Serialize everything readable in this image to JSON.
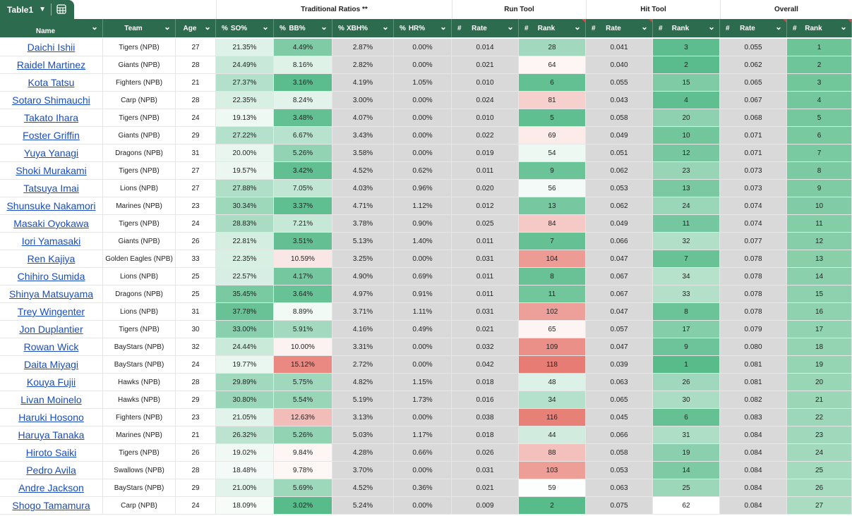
{
  "table_tab": {
    "label": "Table1",
    "chevron_icon": "chevron-down-icon",
    "grid_icon": "table-grid-icon"
  },
  "groups": [
    "Traditional Ratios **",
    "Run Tool",
    "Hit Tool",
    "Overall"
  ],
  "columns": [
    {
      "prefix": "",
      "label": "Name"
    },
    {
      "prefix": "",
      "label": "Team"
    },
    {
      "prefix": "",
      "label": "Age"
    },
    {
      "prefix": "%",
      "label": "SO%"
    },
    {
      "prefix": "%",
      "label": "BB%"
    },
    {
      "prefix": "%",
      "label": "XBH%"
    },
    {
      "prefix": "%",
      "label": "HR%"
    },
    {
      "prefix": "#",
      "label": "Rate"
    },
    {
      "prefix": "#",
      "label": "Rank"
    },
    {
      "prefix": "#",
      "label": "Rate"
    },
    {
      "prefix": "#",
      "label": "Rank"
    },
    {
      "prefix": "#",
      "label": "Rate"
    },
    {
      "prefix": "#",
      "label": "Rank"
    }
  ],
  "rows": [
    [
      "Daichi Ishii",
      "Tigers (NPB)",
      "27",
      "21.35%",
      "4.49%",
      "2.87%",
      "0.00%",
      "0.014",
      "28",
      "0.041",
      "3",
      "0.055",
      "1"
    ],
    [
      "Raidel Martinez",
      "Giants (NPB)",
      "28",
      "24.49%",
      "8.16%",
      "2.82%",
      "0.00%",
      "0.021",
      "64",
      "0.040",
      "2",
      "0.062",
      "2"
    ],
    [
      "Kota Tatsu",
      "Fighters (NPB)",
      "21",
      "27.37%",
      "3.16%",
      "4.19%",
      "1.05%",
      "0.010",
      "6",
      "0.055",
      "15",
      "0.065",
      "3"
    ],
    [
      "Sotaro Shimauchi",
      "Carp (NPB)",
      "28",
      "22.35%",
      "8.24%",
      "3.00%",
      "0.00%",
      "0.024",
      "81",
      "0.043",
      "4",
      "0.067",
      "4"
    ],
    [
      "Takato Ihara",
      "Tigers (NPB)",
      "24",
      "19.13%",
      "3.48%",
      "4.07%",
      "0.00%",
      "0.010",
      "5",
      "0.058",
      "20",
      "0.068",
      "5"
    ],
    [
      "Foster Griffin",
      "Giants (NPB)",
      "29",
      "27.22%",
      "6.67%",
      "3.43%",
      "0.00%",
      "0.022",
      "69",
      "0.049",
      "10",
      "0.071",
      "6"
    ],
    [
      "Yuya Yanagi",
      "Dragons (NPB)",
      "31",
      "20.00%",
      "5.26%",
      "3.58%",
      "0.00%",
      "0.019",
      "54",
      "0.051",
      "12",
      "0.071",
      "7"
    ],
    [
      "Shoki Murakami",
      "Tigers (NPB)",
      "27",
      "19.57%",
      "3.42%",
      "4.52%",
      "0.62%",
      "0.011",
      "9",
      "0.062",
      "23",
      "0.073",
      "8"
    ],
    [
      "Tatsuya Imai",
      "Lions (NPB)",
      "27",
      "27.88%",
      "7.05%",
      "4.03%",
      "0.96%",
      "0.020",
      "56",
      "0.053",
      "13",
      "0.073",
      "9"
    ],
    [
      "Shunsuke Nakamori",
      "Marines (NPB)",
      "23",
      "30.34%",
      "3.37%",
      "4.71%",
      "1.12%",
      "0.012",
      "13",
      "0.062",
      "24",
      "0.074",
      "10"
    ],
    [
      "Masaki Oyokawa",
      "Tigers (NPB)",
      "24",
      "28.83%",
      "7.21%",
      "3.78%",
      "0.90%",
      "0.025",
      "84",
      "0.049",
      "11",
      "0.074",
      "11"
    ],
    [
      "Iori Yamasaki",
      "Giants (NPB)",
      "26",
      "22.81%",
      "3.51%",
      "5.13%",
      "1.40%",
      "0.011",
      "7",
      "0.066",
      "32",
      "0.077",
      "12"
    ],
    [
      "Ren Kajiya",
      "Golden Eagles (NPB)",
      "33",
      "22.35%",
      "10.59%",
      "3.25%",
      "0.00%",
      "0.031",
      "104",
      "0.047",
      "7",
      "0.078",
      "13"
    ],
    [
      "Chihiro Sumida",
      "Lions (NPB)",
      "25",
      "22.57%",
      "4.17%",
      "4.90%",
      "0.69%",
      "0.011",
      "8",
      "0.067",
      "34",
      "0.078",
      "14"
    ],
    [
      "Shinya Matsuyama",
      "Dragons (NPB)",
      "25",
      "35.45%",
      "3.64%",
      "4.97%",
      "0.91%",
      "0.011",
      "11",
      "0.067",
      "33",
      "0.078",
      "15"
    ],
    [
      "Trey Wingenter",
      "Lions (NPB)",
      "31",
      "37.78%",
      "8.89%",
      "3.71%",
      "1.11%",
      "0.031",
      "102",
      "0.047",
      "8",
      "0.078",
      "16"
    ],
    [
      "Jon Duplantier",
      "Tigers (NPB)",
      "30",
      "33.00%",
      "5.91%",
      "4.16%",
      "0.49%",
      "0.021",
      "65",
      "0.057",
      "17",
      "0.079",
      "17"
    ],
    [
      "Rowan Wick",
      "BayStars (NPB)",
      "32",
      "24.44%",
      "10.00%",
      "3.31%",
      "0.00%",
      "0.032",
      "109",
      "0.047",
      "9",
      "0.080",
      "18"
    ],
    [
      "Daita Miyagi",
      "BayStars (NPB)",
      "24",
      "19.77%",
      "15.12%",
      "2.72%",
      "0.00%",
      "0.042",
      "118",
      "0.039",
      "1",
      "0.081",
      "19"
    ],
    [
      "Kouya Fujii",
      "Hawks (NPB)",
      "28",
      "29.89%",
      "5.75%",
      "4.82%",
      "1.15%",
      "0.018",
      "48",
      "0.063",
      "26",
      "0.081",
      "20"
    ],
    [
      "Livan Moinelo",
      "Hawks (NPB)",
      "29",
      "30.80%",
      "5.54%",
      "5.19%",
      "1.73%",
      "0.016",
      "34",
      "0.065",
      "30",
      "0.082",
      "21"
    ],
    [
      "Haruki Hosono",
      "Fighters (NPB)",
      "23",
      "21.05%",
      "12.63%",
      "3.13%",
      "0.00%",
      "0.038",
      "116",
      "0.045",
      "6",
      "0.083",
      "22"
    ],
    [
      "Haruya Tanaka",
      "Marines (NPB)",
      "21",
      "26.32%",
      "5.26%",
      "5.03%",
      "1.17%",
      "0.018",
      "44",
      "0.066",
      "31",
      "0.084",
      "23"
    ],
    [
      "Hiroto Saiki",
      "Tigers (NPB)",
      "26",
      "19.02%",
      "9.84%",
      "4.28%",
      "0.66%",
      "0.026",
      "88",
      "0.058",
      "19",
      "0.084",
      "24"
    ],
    [
      "Pedro Avila",
      "Swallows (NPB)",
      "28",
      "18.48%",
      "9.78%",
      "3.70%",
      "0.00%",
      "0.031",
      "103",
      "0.053",
      "14",
      "0.084",
      "25"
    ],
    [
      "Andre Jackson",
      "BayStars (NPB)",
      "29",
      "21.00%",
      "5.69%",
      "4.52%",
      "0.36%",
      "0.021",
      "59",
      "0.063",
      "25",
      "0.084",
      "26"
    ],
    [
      "Shogo Tamamura",
      "Carp (NPB)",
      "24",
      "18.09%",
      "3.02%",
      "5.24%",
      "0.00%",
      "0.009",
      "2",
      "0.075",
      "62",
      "0.084",
      "27"
    ]
  ],
  "colors": {
    "header_bg": "#2d6b4f",
    "link": "#1a4dbf",
    "gray_column": "#d9d9d9",
    "good_dark": "#57bb8a",
    "neutral": "#ffffff",
    "bad_dark": "#e67c73"
  }
}
